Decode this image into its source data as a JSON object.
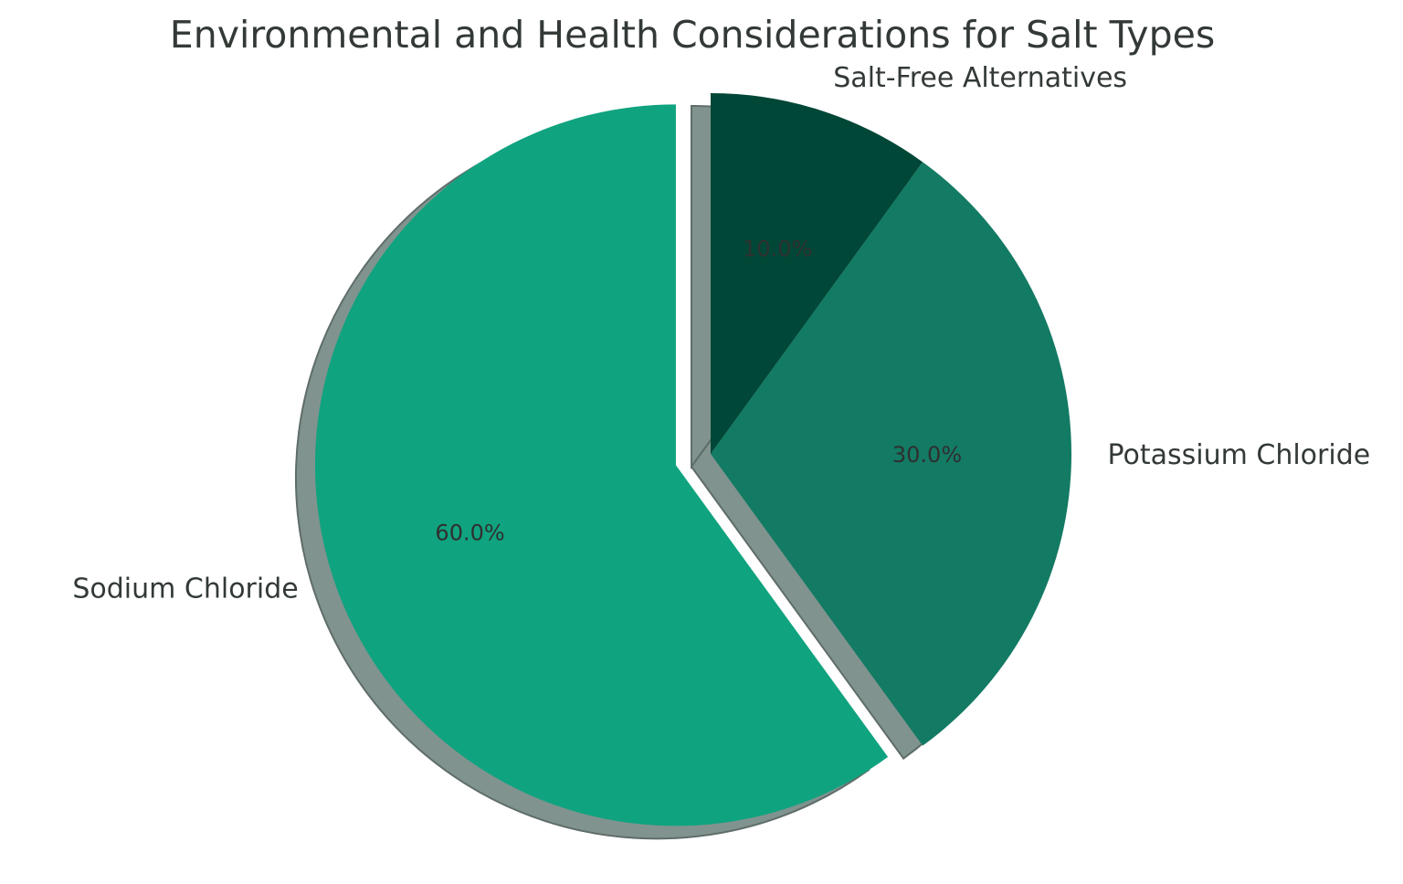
{
  "chart_data": {
    "type": "pie",
    "title": "Environmental and Health Considerations for Salt Types",
    "slices": [
      {
        "label": "Salt-Free Alternatives",
        "value": 10.0,
        "pct_label": "10.0%",
        "color": "#014737",
        "exploded": false
      },
      {
        "label": "Potassium Chloride",
        "value": 30.0,
        "pct_label": "30.0%",
        "color": "#137a63",
        "exploded": false
      },
      {
        "label": "Sodium Chloride",
        "value": 60.0,
        "pct_label": "60.0%",
        "color": "#10a37f",
        "exploded": true
      }
    ],
    "start_angle_deg": 90,
    "direction": "clockwise",
    "shadow": true,
    "shadow_color": "#80938f"
  }
}
